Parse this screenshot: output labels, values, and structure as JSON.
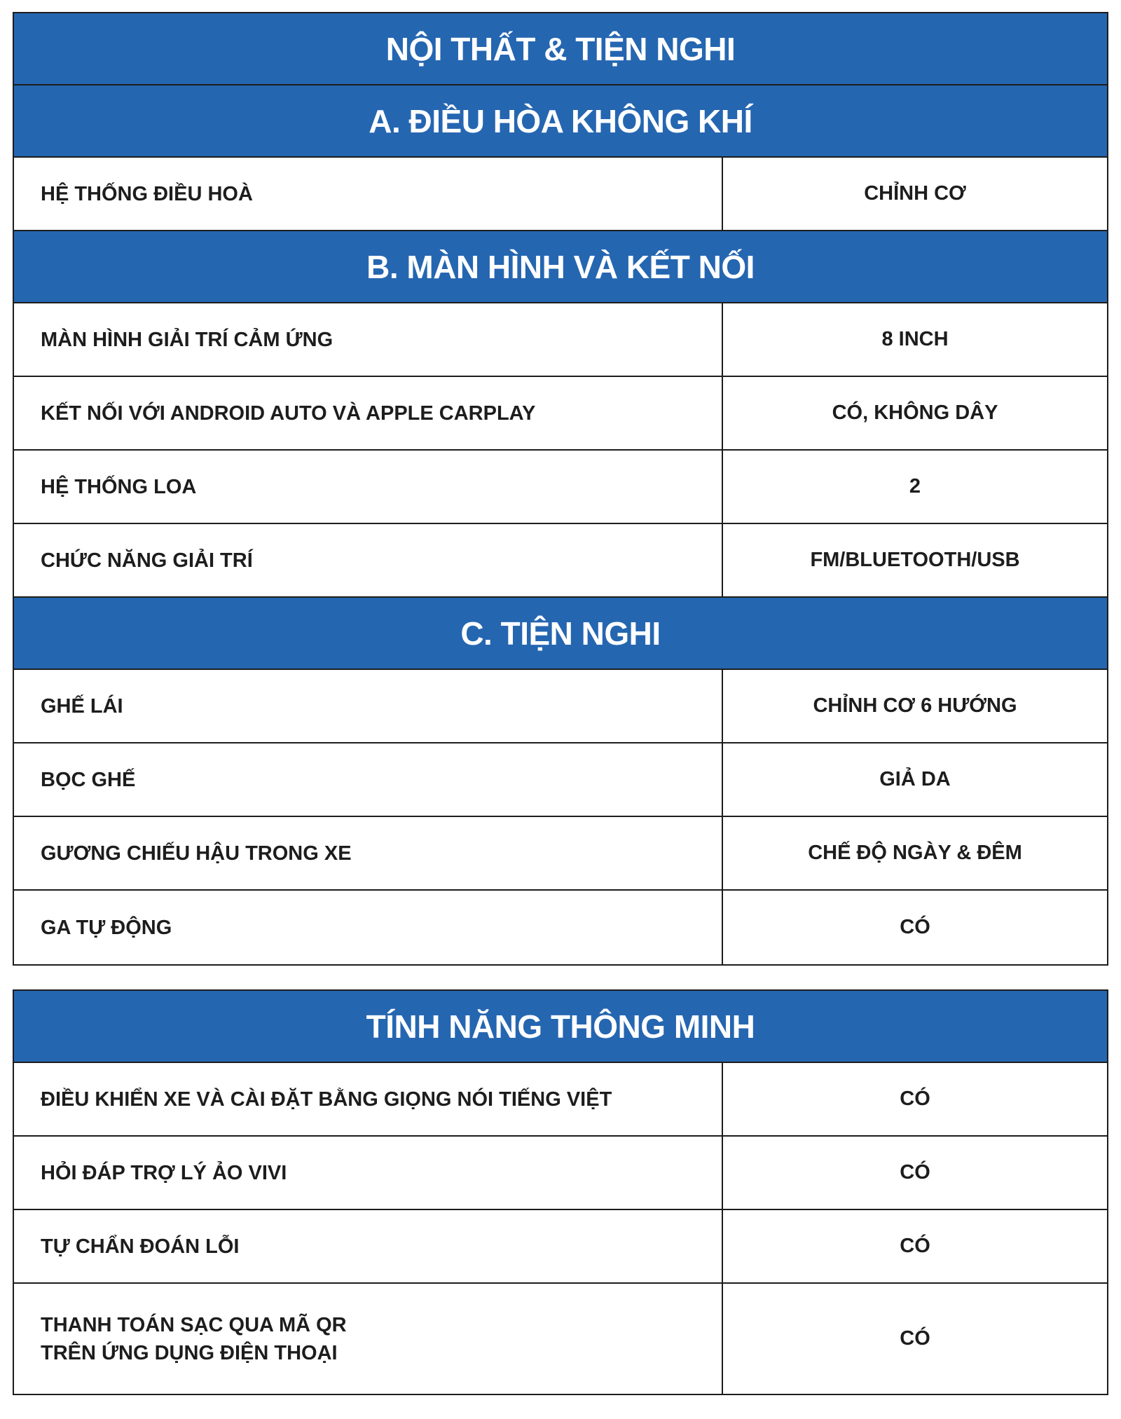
{
  "tables": [
    {
      "title": "NỘI THẤT & TIỆN NGHI",
      "sections": [
        {
          "heading": "A. ĐIỀU HÒA KHÔNG KHÍ",
          "rows": [
            [
              "HỆ THỐNG ĐIỀU HOÀ",
              "CHỈNH CƠ"
            ]
          ]
        },
        {
          "heading": "B. MÀN HÌNH VÀ KẾT NỐI",
          "rows": [
            [
              "MÀN HÌNH GIẢI TRÍ CẢM ỨNG",
              "8 INCH"
            ],
            [
              "KẾT NỐI VỚI ANDROID AUTO VÀ APPLE CARPLAY",
              "CÓ, KHÔNG DÂY"
            ],
            [
              "HỆ THỐNG LOA",
              "2"
            ],
            [
              "CHỨC NĂNG GIẢI TRÍ",
              "FM/BLUETOOTH/USB"
            ]
          ]
        },
        {
          "heading": "C. TIỆN NGHI",
          "rows": [
            [
              "GHẾ LÁI",
              "CHỈNH CƠ 6 HƯỚNG"
            ],
            [
              "BỌC GHẾ",
              "GIẢ DA"
            ],
            [
              "GƯƠNG CHIẾU HẬU TRONG XE",
              "CHẾ ĐỘ NGÀY & ĐÊM"
            ],
            [
              "GA TỰ ĐỘNG",
              "CÓ"
            ]
          ]
        }
      ]
    },
    {
      "title": "TÍNH NĂNG THÔNG MINH",
      "rows": [
        [
          "ĐIỀU KHIỂN XE VÀ CÀI ĐẶT BẰNG GIỌNG NÓI TIẾNG VIỆT",
          "CÓ"
        ],
        [
          "HỎI ĐÁP TRỢ LÝ ẢO VIVI",
          "CÓ"
        ],
        [
          "TỰ CHẨN ĐOÁN LỖI",
          "CÓ"
        ],
        [
          "THANH TOÁN SẠC QUA MÃ QR\nTRÊN ỨNG DỤNG ĐIỆN THOẠI",
          "CÓ"
        ]
      ]
    }
  ]
}
